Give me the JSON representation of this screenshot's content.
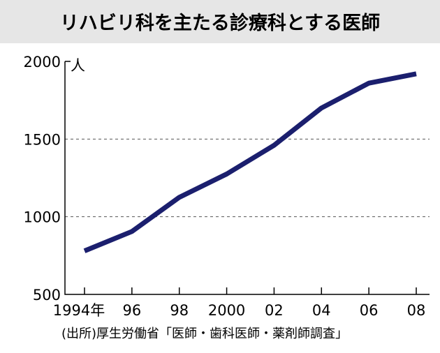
{
  "chart_data": {
    "type": "line",
    "title": "リハビリ科を主たる診療科とする医師",
    "unit": "人",
    "x": [
      "1994",
      "1996",
      "1998",
      "2000",
      "2002",
      "2004",
      "2006",
      "2008"
    ],
    "x_tick_labels": [
      "1994年",
      "96",
      "98",
      "2000",
      "02",
      "04",
      "06",
      "08"
    ],
    "series": [
      {
        "values": [
          780,
          905,
          1125,
          1275,
          1460,
          1700,
          1860,
          1920
        ]
      }
    ],
    "y_ticks": [
      "500",
      "1000",
      "1500",
      "2000"
    ],
    "ylim": [
      500,
      2000
    ],
    "grid": "horizontal-dashed",
    "source": "(出所)厚生労働省「医師・歯科医師・薬剤師調査」"
  },
  "colors": {
    "line": "#1b1f6e",
    "title_background": "#e6e6e6"
  }
}
